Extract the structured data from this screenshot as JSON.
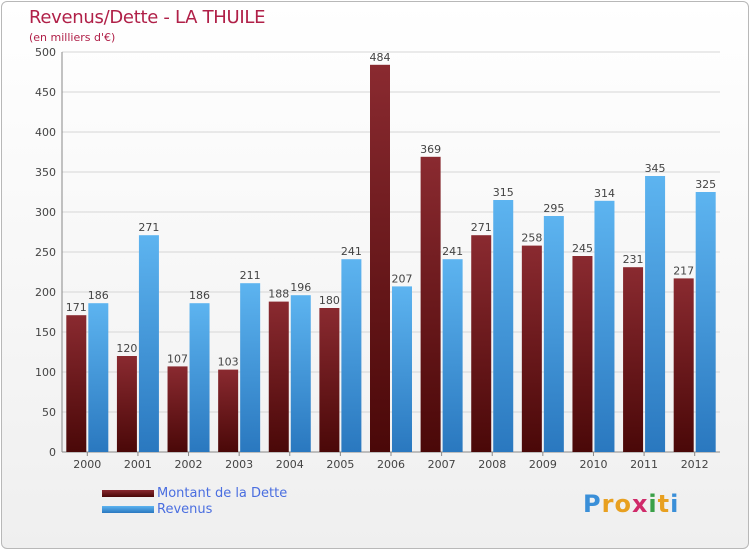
{
  "chart_data": {
    "type": "bar",
    "title": "Revenus/Dette - LA THUILE",
    "subtitle": "(en milliers d'€)",
    "categories": [
      "2000",
      "2001",
      "2002",
      "2003",
      "2004",
      "2005",
      "2006",
      "2007",
      "2008",
      "2009",
      "2010",
      "2011",
      "2012"
    ],
    "series": [
      {
        "name": "Montant de la Dette",
        "color": "#7a1c22",
        "values": [
          171,
          120,
          107,
          103,
          188,
          180,
          484,
          369,
          271,
          258,
          245,
          231,
          217
        ]
      },
      {
        "name": "Revenus",
        "color": "#4aa3e6",
        "values": [
          186,
          271,
          186,
          211,
          196,
          241,
          207,
          241,
          315,
          295,
          314,
          345,
          325
        ]
      }
    ],
    "ylim": [
      0,
      500
    ],
    "yticks": [
      0,
      50,
      100,
      150,
      200,
      250,
      300,
      350,
      400,
      450,
      500
    ],
    "grid": true,
    "legend_position": "bottom-left"
  },
  "logo": {
    "letters": [
      "P",
      "r",
      "o",
      "x",
      "i",
      "t",
      "i"
    ],
    "colors": [
      "#3a8fd8",
      "#e8a020",
      "#e8a020",
      "#d02a6a",
      "#3aa048",
      "#e8a020",
      "#3a8fd8"
    ]
  }
}
